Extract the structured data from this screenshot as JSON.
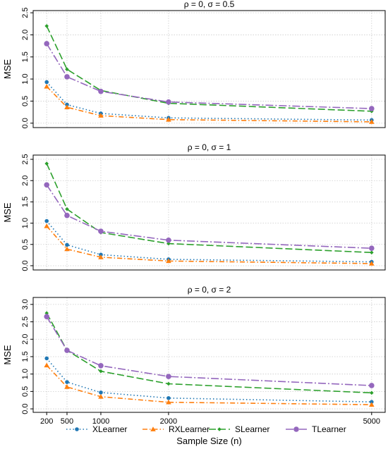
{
  "chart_data": [
    {
      "type": "line",
      "title": "ρ = 0, σ = 0.5",
      "ylabel": "MSE",
      "x": [
        200,
        500,
        1000,
        2000,
        5000
      ],
      "ylim": [
        -0.1,
        2.55
      ],
      "yticks": [
        "0.0",
        "0.5",
        "1.0",
        "1.5",
        "2.0",
        "2.5"
      ],
      "grid": true,
      "series": [
        {
          "name": "XLearner",
          "values": [
            0.93,
            0.42,
            0.22,
            0.12,
            0.07
          ]
        },
        {
          "name": "RXLearner",
          "values": [
            0.83,
            0.36,
            0.17,
            0.08,
            0.03
          ]
        },
        {
          "name": "SLearner",
          "values": [
            2.2,
            1.22,
            0.74,
            0.45,
            0.27
          ]
        },
        {
          "name": "TLearner",
          "values": [
            1.8,
            1.05,
            0.72,
            0.48,
            0.33
          ]
        }
      ]
    },
    {
      "type": "line",
      "title": "ρ = 0, σ = 1",
      "ylabel": "MSE",
      "x": [
        200,
        500,
        1000,
        2000,
        5000
      ],
      "ylim": [
        -0.1,
        2.6
      ],
      "yticks": [
        "0.0",
        "0.5",
        "1.0",
        "1.5",
        "2.0",
        "2.5"
      ],
      "grid": true,
      "series": [
        {
          "name": "XLearner",
          "values": [
            1.05,
            0.49,
            0.26,
            0.15,
            0.09
          ]
        },
        {
          "name": "RXLearner",
          "values": [
            0.93,
            0.39,
            0.2,
            0.11,
            0.05
          ]
        },
        {
          "name": "SLearner",
          "values": [
            2.4,
            1.33,
            0.78,
            0.52,
            0.31
          ]
        },
        {
          "name": "TLearner",
          "values": [
            1.9,
            1.18,
            0.81,
            0.6,
            0.41
          ]
        }
      ]
    },
    {
      "type": "line",
      "title": "ρ = 0, σ = 2",
      "ylabel": "MSE",
      "x": [
        200,
        500,
        1000,
        2000,
        5000
      ],
      "ylim": [
        -0.1,
        3.2
      ],
      "yticks": [
        "0.0",
        "0.5",
        "1.0",
        "1.5",
        "2.0",
        "2.5",
        "3.0"
      ],
      "grid": true,
      "series": [
        {
          "name": "XLearner",
          "values": [
            1.45,
            0.77,
            0.47,
            0.31,
            0.2
          ]
        },
        {
          "name": "RXLearner",
          "values": [
            1.25,
            0.63,
            0.35,
            0.19,
            0.12
          ]
        },
        {
          "name": "SLearner",
          "values": [
            2.75,
            1.68,
            1.08,
            0.72,
            0.46
          ]
        },
        {
          "name": "TLearner",
          "values": [
            2.65,
            1.68,
            1.24,
            0.93,
            0.67
          ]
        }
      ]
    }
  ],
  "shared": {
    "xlabel": "Sample Size (n)",
    "xticks": [
      "200",
      "500",
      "1000",
      "2000",
      "5000"
    ],
    "legend": [
      "XLearner",
      "RXLearner",
      "SLearner",
      "TLearner"
    ],
    "legend_position": "bottom",
    "colors": {
      "XLearner": "#1f77b4",
      "RXLearner": "#ff7f0e",
      "SLearner": "#2ca02c",
      "TLearner": "#9467bd"
    }
  }
}
